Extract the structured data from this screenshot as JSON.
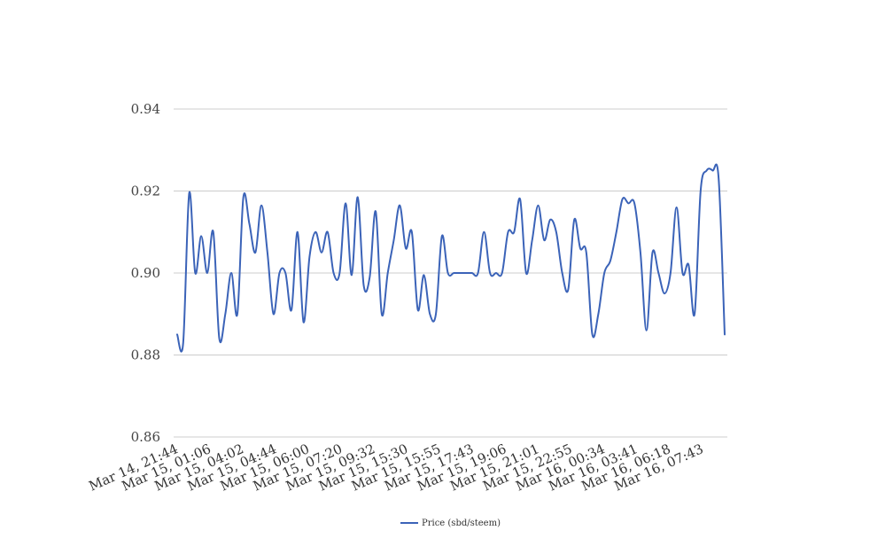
{
  "chart_data": {
    "type": "line",
    "title": "",
    "xlabel": "",
    "ylabel": "",
    "ylim": [
      0.86,
      0.94
    ],
    "yticks": [
      "0.86",
      "0.88",
      "0.90",
      "0.92",
      "0.94"
    ],
    "ytick_values": [
      0.86,
      0.88,
      0.9,
      0.92,
      0.94
    ],
    "grid": true,
    "legend_position": "bottom",
    "color": "#3b63b8",
    "x_tick_labels": [
      "Mar 14, 21:44",
      "Mar 15, 01:06",
      "Mar 15, 04:02",
      "Mar 15, 04:44",
      "Mar 15, 06:00",
      "Mar 15, 07:20",
      "Mar 15, 09:32",
      "Mar 15, 15:30",
      "Mar 15, 15:55",
      "Mar 15, 17:43",
      "Mar 15, 19:06",
      "Mar 15, 21:01",
      "Mar 15, 22:55",
      "Mar 16, 00:34",
      "Mar 16, 03:41",
      "Mar 16, 06:18",
      "Mar 16, 07:43"
    ],
    "series": [
      {
        "name": "Price (sbd/steem)",
        "values": [
          0.885,
          0.883,
          0.9195,
          0.9,
          0.909,
          0.9,
          0.91,
          0.884,
          0.89,
          0.9,
          0.89,
          0.9185,
          0.912,
          0.905,
          0.9165,
          0.905,
          0.89,
          0.9,
          0.9,
          0.891,
          0.91,
          0.888,
          0.904,
          0.91,
          0.905,
          0.91,
          0.9,
          0.9,
          0.917,
          0.8995,
          0.9185,
          0.897,
          0.899,
          0.915,
          0.89,
          0.9,
          0.908,
          0.9165,
          0.906,
          0.91,
          0.891,
          0.8995,
          0.89,
          0.89,
          0.909,
          0.9,
          0.9,
          0.9,
          0.9,
          0.9,
          0.9,
          0.91,
          0.9,
          0.9,
          0.9,
          0.91,
          0.91,
          0.918,
          0.9,
          0.908,
          0.9165,
          0.908,
          0.913,
          0.91,
          0.9,
          0.896,
          0.913,
          0.906,
          0.905,
          0.885,
          0.89,
          0.9,
          0.903,
          0.91,
          0.918,
          0.917,
          0.917,
          0.905,
          0.886,
          0.905,
          0.9,
          0.895,
          0.9,
          0.916,
          0.9,
          0.902,
          0.89,
          0.92,
          0.925,
          0.925,
          0.923,
          0.885
        ]
      }
    ]
  }
}
